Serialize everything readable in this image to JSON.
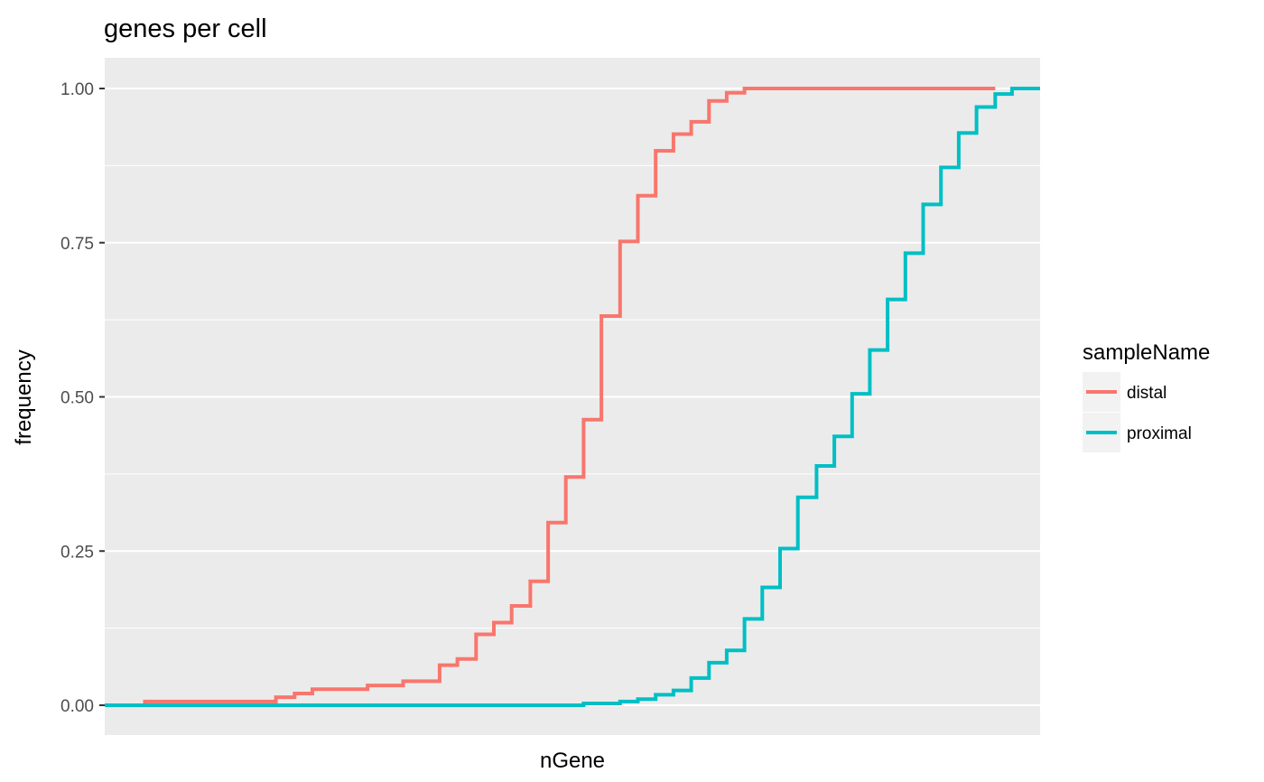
{
  "chart_data": {
    "type": "line",
    "step": true,
    "title": "genes per cell",
    "xlabel": "nGene",
    "ylabel": "frequency",
    "x_ticks_shown": false,
    "x_range": [
      0,
      1
    ],
    "ylim": [
      0,
      1
    ],
    "y_ticks": [
      {
        "value": 0.0,
        "label": "0.00"
      },
      {
        "value": 0.25,
        "label": "0.25"
      },
      {
        "value": 0.5,
        "label": "0.50"
      },
      {
        "value": 0.75,
        "label": "0.75"
      },
      {
        "value": 1.0,
        "label": "1.00"
      }
    ],
    "grid": true,
    "legend": {
      "title": "sampleName",
      "position": "right",
      "entries": [
        "distal",
        "proximal"
      ]
    },
    "series": [
      {
        "name": "distal",
        "color": "#F8766D",
        "steps": [
          [
            0.0,
            0.0
          ],
          [
            0.043,
            0.006
          ],
          [
            0.183,
            0.013
          ],
          [
            0.203,
            0.019
          ],
          [
            0.222,
            0.026
          ],
          [
            0.281,
            0.032
          ],
          [
            0.319,
            0.039
          ],
          [
            0.358,
            0.065
          ],
          [
            0.377,
            0.075
          ],
          [
            0.397,
            0.115
          ],
          [
            0.416,
            0.134
          ],
          [
            0.435,
            0.161
          ],
          [
            0.455,
            0.201
          ],
          [
            0.474,
            0.296
          ],
          [
            0.493,
            0.37
          ],
          [
            0.512,
            0.463
          ],
          [
            0.531,
            0.631
          ],
          [
            0.551,
            0.752
          ],
          [
            0.57,
            0.826
          ],
          [
            0.589,
            0.899
          ],
          [
            0.608,
            0.926
          ],
          [
            0.627,
            0.946
          ],
          [
            0.646,
            0.98
          ],
          [
            0.665,
            0.993
          ],
          [
            0.684,
            1.0
          ],
          [
            0.952,
            1.0
          ]
        ]
      },
      {
        "name": "proximal",
        "color": "#00BFC4",
        "steps": [
          [
            0.0,
            0.0
          ],
          [
            0.512,
            0.003
          ],
          [
            0.551,
            0.006
          ],
          [
            0.57,
            0.01
          ],
          [
            0.589,
            0.017
          ],
          [
            0.608,
            0.024
          ],
          [
            0.627,
            0.044
          ],
          [
            0.646,
            0.069
          ],
          [
            0.665,
            0.089
          ],
          [
            0.684,
            0.14
          ],
          [
            0.703,
            0.191
          ],
          [
            0.722,
            0.254
          ],
          [
            0.741,
            0.337
          ],
          [
            0.761,
            0.388
          ],
          [
            0.78,
            0.436
          ],
          [
            0.799,
            0.505
          ],
          [
            0.818,
            0.576
          ],
          [
            0.837,
            0.658
          ],
          [
            0.856,
            0.733
          ],
          [
            0.875,
            0.812
          ],
          [
            0.894,
            0.872
          ],
          [
            0.913,
            0.928
          ],
          [
            0.932,
            0.97
          ],
          [
            0.952,
            0.991
          ],
          [
            0.97,
            1.0
          ],
          [
            1.0,
            1.0
          ]
        ]
      }
    ]
  }
}
